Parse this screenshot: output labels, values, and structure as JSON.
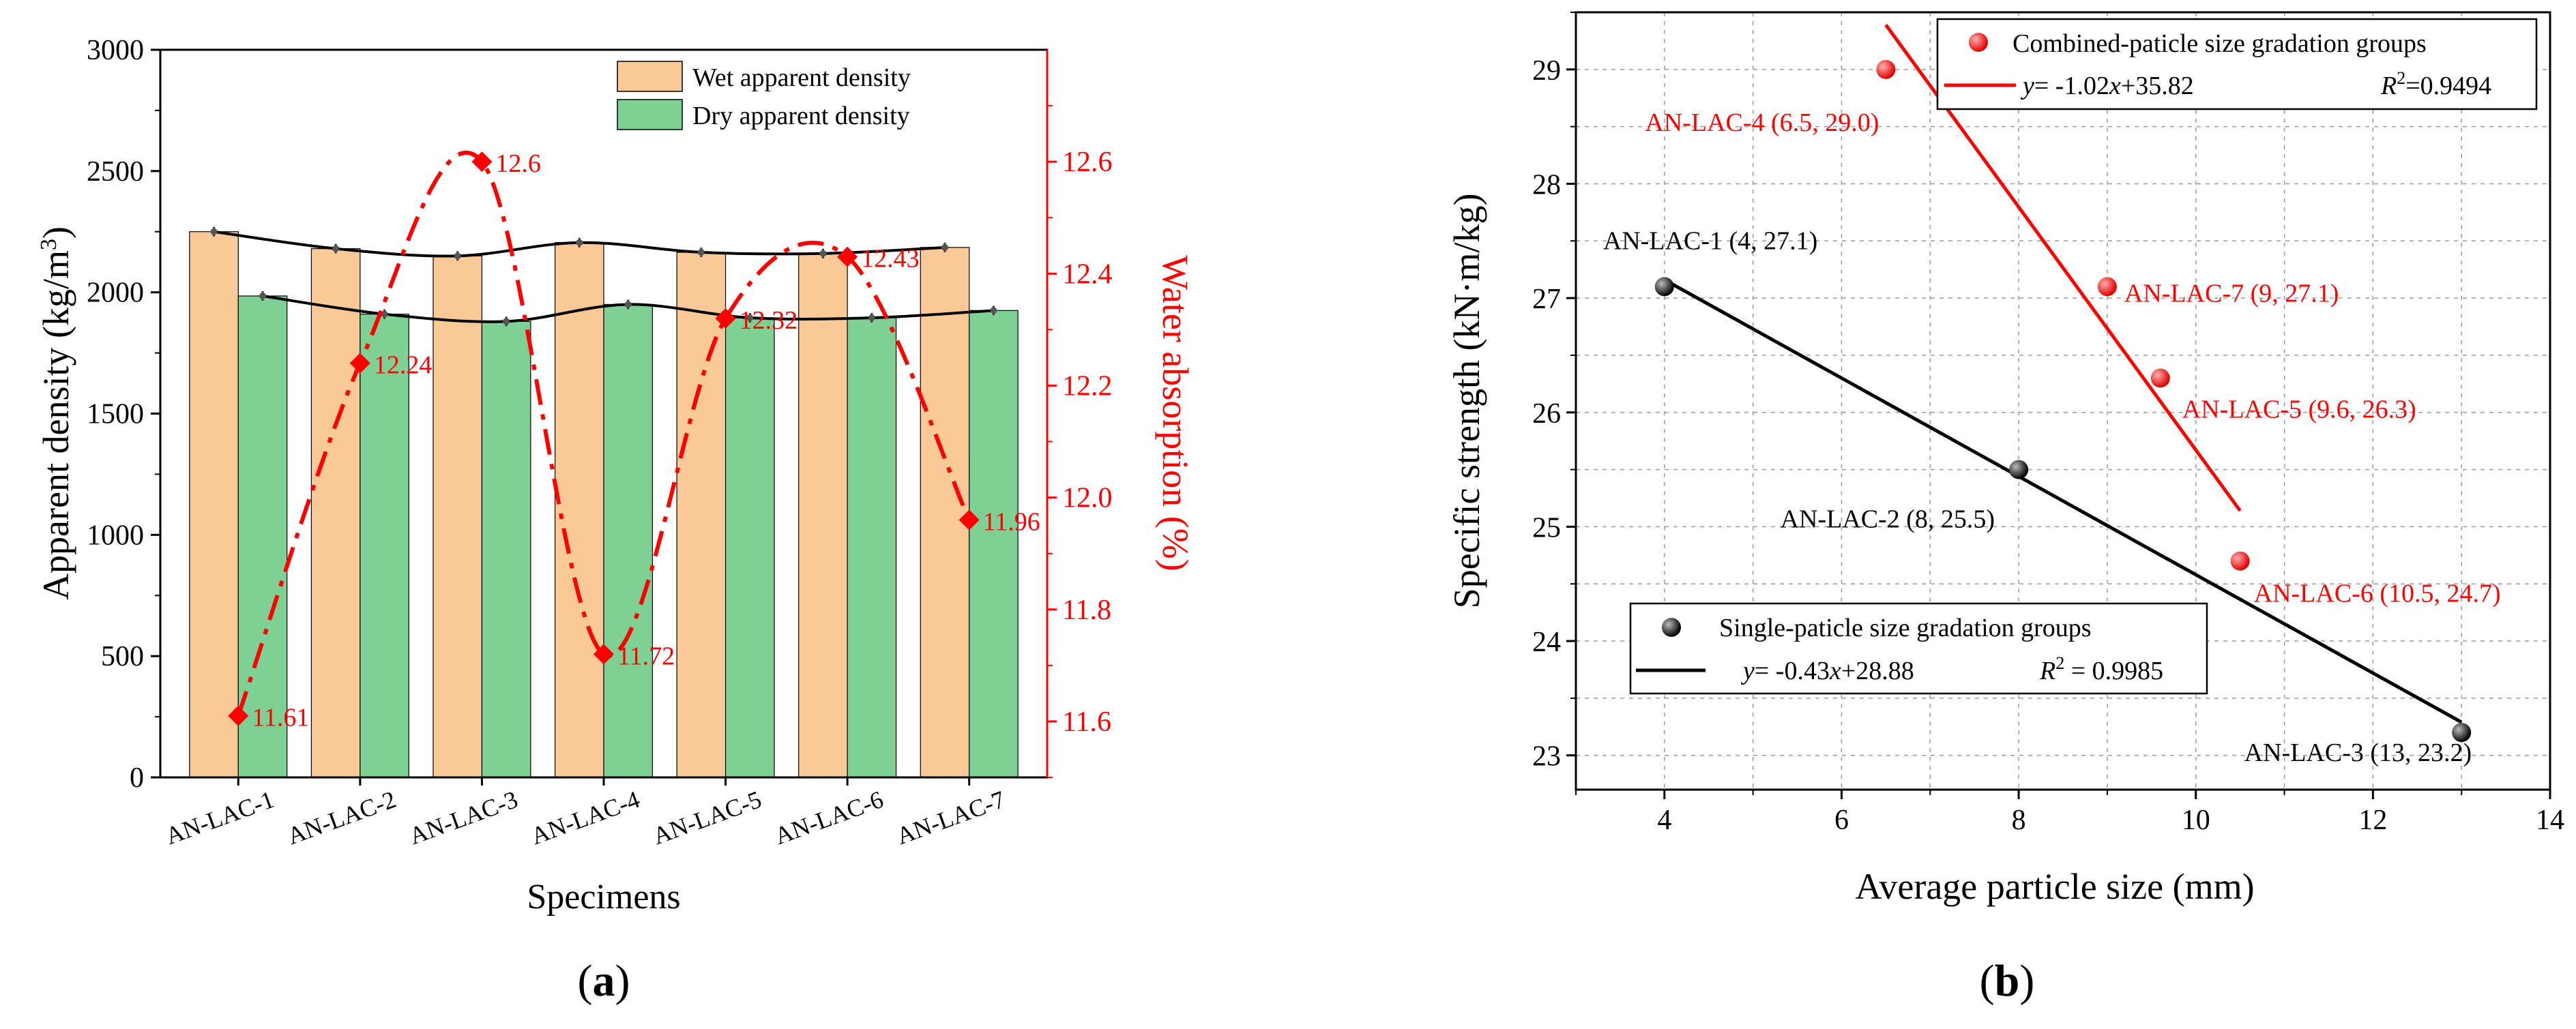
{
  "chart_data": [
    {
      "type": "bar",
      "panel_label": "a",
      "categories": [
        "AN-LAC-1",
        "AN-LAC-2",
        "AN-LAC-3",
        "AN-LAC-4",
        "AN-LAC-5",
        "AN-LAC-6",
        "AN-LAC-7"
      ],
      "series": [
        {
          "name": "Wet apparent density",
          "axis": "left",
          "values": [
            2250,
            2180,
            2150,
            2205,
            2165,
            2160,
            2185
          ],
          "color": "#fbc897"
        },
        {
          "name": "Dry apparent density",
          "axis": "left",
          "values": [
            1985,
            1910,
            1880,
            1950,
            1895,
            1895,
            1925
          ],
          "color": "#7fd095"
        },
        {
          "name": "Water absorption",
          "axis": "right",
          "type": "line",
          "values": [
            11.61,
            12.24,
            12.6,
            11.72,
            12.32,
            12.43,
            11.96
          ],
          "labels": [
            "11.61",
            "12.24",
            "12.6",
            "11.72",
            "12.32",
            "12.43",
            "11.96"
          ],
          "color": "#ff0000"
        }
      ],
      "xlabel": "Specimens",
      "ylabel": "Apparent density (kg/m",
      "ylabel_sup": "3",
      "ylabel_end": ")",
      "y2label": "Water absorption (%)",
      "ylim": [
        0,
        3000
      ],
      "yticks": [
        "0",
        "500",
        "1000",
        "1500",
        "2000",
        "2500",
        "3000"
      ],
      "y2lim": [
        11.5,
        12.8
      ],
      "y2ticks": [
        "11.6",
        "11.8",
        "12.0",
        "12.2",
        "12.4",
        "12.6"
      ],
      "legend": [
        "Wet apparent density",
        "Dry apparent density"
      ],
      "legend_position": "top-right",
      "grid": false
    },
    {
      "type": "scatter",
      "panel_label": "b",
      "series": [
        {
          "name": "Combined-paticle size gradation groups",
          "color": "#ff0000",
          "points": [
            {
              "x": 6.5,
              "y": 29.0,
              "label": "AN-LAC-4 (6.5, 29.0)"
            },
            {
              "x": 9,
              "y": 27.1,
              "label": "AN-LAC-7 (9, 27.1)"
            },
            {
              "x": 9.6,
              "y": 26.3,
              "label": "AN-LAC-5 (9.6, 26.3)"
            },
            {
              "x": 10.5,
              "y": 24.7,
              "label": "AN-LAC-6 (10.5, 24.7)"
            }
          ],
          "fit": {
            "slope": -1.02,
            "intercept": 35.82,
            "x_range": [
              6.5,
              10.5
            ]
          },
          "equation": "= -1.02",
          "equation_tail": "+35.82",
          "r2_value": "=0.9494"
        },
        {
          "name": "Single-paticle size gradation groups",
          "color": "#000000",
          "points": [
            {
              "x": 4,
              "y": 27.1,
              "label": "AN-LAC-1 (4, 27.1)"
            },
            {
              "x": 8,
              "y": 25.5,
              "label": "AN-LAC-2 (8, 25.5)"
            },
            {
              "x": 13,
              "y": 23.2,
              "label": "AN-LAC-3 (13, 23.2)"
            }
          ],
          "fit": {
            "slope": -0.43,
            "intercept": 28.88,
            "x_range": [
              4,
              13
            ]
          },
          "equation": "= -0.43",
          "equation_tail": "+28.88",
          "r2_value": " = 0.9985"
        }
      ],
      "xlabel": "Average particle size (mm)",
      "ylabel": "Specific strength (kN·m/kg)",
      "xlim": [
        3,
        14
      ],
      "xticks": [
        "4",
        "6",
        "8",
        "10",
        "12",
        "14"
      ],
      "ylim": [
        22.7,
        29.5
      ],
      "yticks": [
        "23",
        "24",
        "25",
        "26",
        "27",
        "28",
        "29"
      ],
      "legend_position": "top-right and bottom-left",
      "grid": true
    }
  ]
}
